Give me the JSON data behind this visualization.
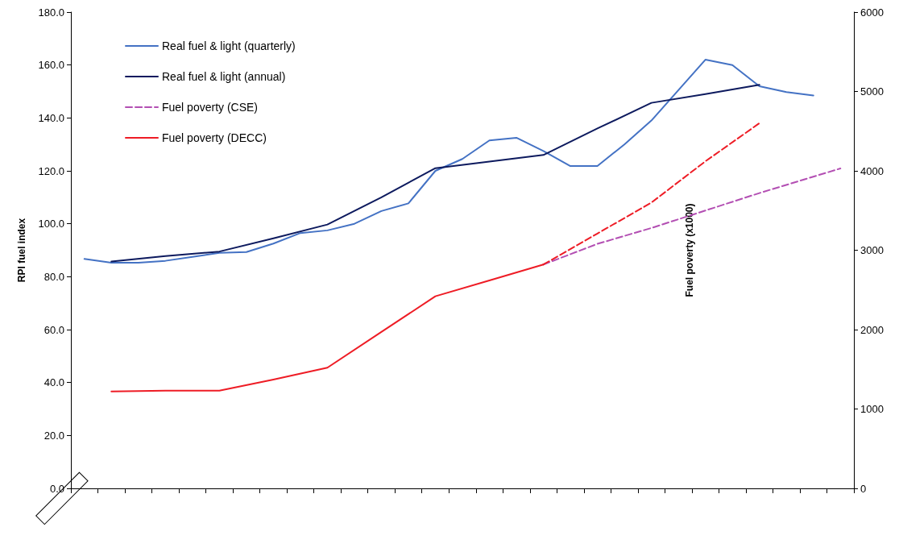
{
  "chart_data": {
    "type": "line",
    "ylabel": "RPI fuel index",
    "y2label": "Fuel poverty (x1000)",
    "categories": [
      null,
      null,
      null,
      null,
      null,
      null,
      null,
      null,
      null,
      null,
      null,
      null,
      null,
      null,
      null,
      null,
      null,
      null,
      null,
      null,
      null,
      null,
      null,
      null,
      null,
      null,
      null,
      null,
      null
    ],
    "ylim": [
      0,
      180
    ],
    "yticks": [
      {
        "value": 0,
        "label": "0.0"
      },
      {
        "value": 20,
        "label": "20.0"
      },
      {
        "value": 40,
        "label": "40.0"
      },
      {
        "value": 60,
        "label": "60.0"
      },
      {
        "value": 80,
        "label": "80.0"
      },
      {
        "value": 100,
        "label": "100.0"
      },
      {
        "value": 120,
        "label": "120.0"
      },
      {
        "value": 140,
        "label": "140.0"
      },
      {
        "value": 160,
        "label": "160.0"
      },
      {
        "value": 180,
        "label": "180.0"
      }
    ],
    "y2lim": [
      0,
      6000
    ],
    "y2ticks": [
      0,
      1000,
      2000,
      3000,
      4000,
      5000,
      6000
    ],
    "series": [
      {
        "name": "Real fuel & light (quarterly)",
        "color": "#4472c4",
        "values": [
          86.7,
          85.3,
          85.3,
          86,
          87.5,
          89,
          89.3,
          92.5,
          96.5,
          97.5,
          100,
          104.8,
          107.7,
          120,
          124.5,
          131.5,
          132.5,
          127.5,
          121.8,
          121.8,
          130,
          139,
          150.5,
          162,
          160,
          152,
          149.8,
          148.5,
          null
        ]
      },
      {
        "name": "Real fuel & light (annual)",
        "color": "#0d1a5e",
        "values": [
          null,
          85.7,
          null,
          87.8,
          null,
          89.5,
          null,
          94.5,
          null,
          99.7,
          null,
          110,
          null,
          121,
          null,
          123.5,
          null,
          126,
          null,
          136,
          null,
          145.7,
          null,
          149,
          null,
          152.5,
          null,
          null,
          null
        ]
      },
      {
        "name": "Fuel poverty (CSE)",
        "color": "#b34fb3",
        "axis": "y2",
        "line_style": "dashed",
        "values": [
          null,
          null,
          null,
          null,
          null,
          null,
          null,
          null,
          null,
          null,
          null,
          null,
          null,
          null,
          null,
          null,
          null,
          2820,
          null,
          3080,
          null,
          3280,
          null,
          3500,
          null,
          3720,
          null,
          null,
          4030
        ]
      },
      {
        "name": "Fuel poverty (DECC)",
        "color": "#ee1c25",
        "axis": "y2",
        "line_style": "solid",
        "values": [
          null,
          1220,
          null,
          1230,
          null,
          1230,
          null,
          1370,
          null,
          1520,
          null,
          1970,
          null,
          2420,
          null,
          2620,
          null,
          2820,
          null,
          null,
          null,
          null,
          null,
          null,
          null,
          null,
          null,
          null,
          null
        ]
      },
      {
        "color": "#ee1c25",
        "axis": "y2",
        "line_style": "dashed",
        "values": [
          null,
          null,
          null,
          null,
          null,
          null,
          null,
          null,
          null,
          null,
          null,
          null,
          null,
          null,
          null,
          null,
          null,
          2820,
          null,
          3210,
          null,
          3600,
          null,
          4120,
          null,
          4600,
          null,
          null,
          null
        ]
      }
    ],
    "legend": "top left",
    "grid": false,
    "marker": "none"
  }
}
